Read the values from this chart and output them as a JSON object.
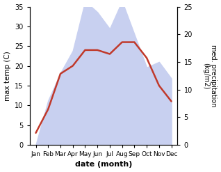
{
  "months": [
    "Jan",
    "Feb",
    "Mar",
    "Apr",
    "May",
    "Jun",
    "Jul",
    "Aug",
    "Sep",
    "Oct",
    "Nov",
    "Dec"
  ],
  "temp": [
    3,
    9,
    18,
    20,
    24,
    24,
    23,
    26,
    26,
    22,
    15,
    11
  ],
  "precip": [
    0,
    8,
    13,
    17,
    26,
    24,
    21,
    26,
    20,
    14,
    15,
    12
  ],
  "temp_ylim": [
    0,
    35
  ],
  "precip_ylim": [
    0,
    25
  ],
  "temp_color": "#c0392b",
  "precip_fill_color": "#c8d0f0",
  "xlabel": "date (month)",
  "ylabel_left": "max temp (C)",
  "ylabel_right": "med. precipitation\n(kg/m2)",
  "temp_linewidth": 1.8,
  "left_ticks": [
    0,
    5,
    10,
    15,
    20,
    25,
    30,
    35
  ],
  "right_ticks": [
    0,
    5,
    10,
    15,
    20,
    25
  ]
}
